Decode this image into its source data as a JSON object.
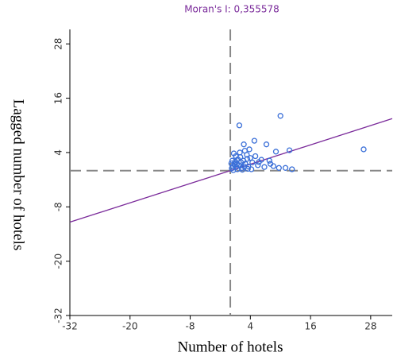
{
  "chart_data": {
    "type": "scatter",
    "title": "Moran's I: 0,355578",
    "x_label": "Number of hotels",
    "y_label": "Lagged number of hotels",
    "xlim": [
      -32,
      32.3
    ],
    "ylim": [
      -32,
      31.2
    ],
    "xticks": [
      -32,
      -20,
      -8,
      4,
      16,
      28
    ],
    "yticks": [
      -32,
      -20,
      -8,
      4,
      16,
      28
    ],
    "zero_lines": true,
    "fit_line": {
      "slope": 0.355578,
      "intercept": 0,
      "color": "#7a2a9a"
    },
    "series": [
      {
        "color": "#3a6fd8",
        "x": [
          1.8,
          10.0,
          26.6,
          4.8,
          7.2,
          11.8,
          9.1,
          2.7,
          5.7,
          7.8,
          9.7,
          11.0,
          12.3,
          8.6,
          3.8,
          0.3,
          0.5,
          0.8,
          1.0,
          1.2,
          1.5,
          1.8,
          2.0,
          2.3,
          2.6,
          3.0,
          3.3,
          3.6,
          4.0,
          4.4,
          5.0,
          5.5,
          6.2,
          0.4,
          0.7,
          1.1,
          1.4,
          1.9,
          2.4,
          2.9,
          3.5,
          4.2,
          0.2,
          0.6,
          1.3,
          2.1,
          2.8,
          3.4,
          6.8,
          8.0
        ],
        "y": [
          10.0,
          12.1,
          4.7,
          6.6,
          5.8,
          4.5,
          4.2,
          5.8,
          1.9,
          2.2,
          0.6,
          0.6,
          0.3,
          1.0,
          4.7,
          0.5,
          1.0,
          1.5,
          2.0,
          0.8,
          2.5,
          1.2,
          3.0,
          0.6,
          2.2,
          1.5,
          3.5,
          0.9,
          2.8,
          1.8,
          3.2,
          1.2,
          2.4,
          2.2,
          3.8,
          3.2,
          0.3,
          4.0,
          0.2,
          4.4,
          0.4,
          0.3,
          1.6,
          0.1,
          1.4,
          1.9,
          0.9,
          2.6,
          0.8,
          1.5
        ]
      }
    ]
  }
}
